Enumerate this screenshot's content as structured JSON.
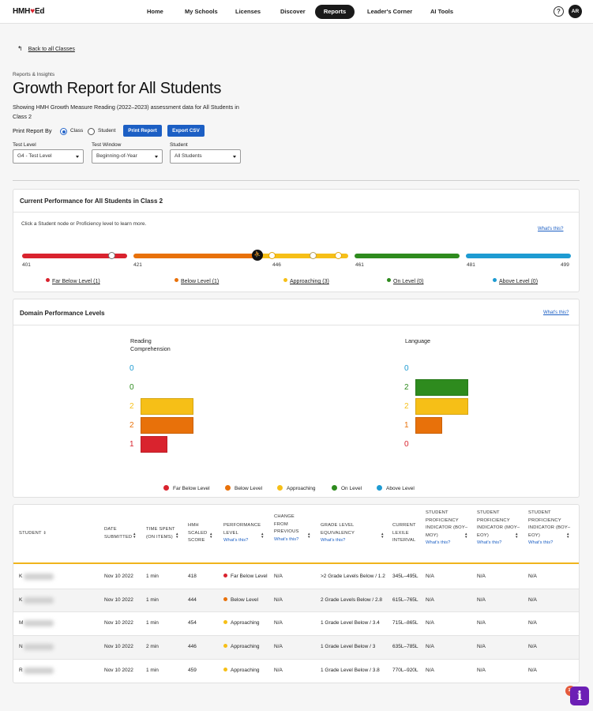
{
  "nav": {
    "logo_pre": "HMH",
    "logo_post": "Ed",
    "items": [
      "Home",
      "My Schools",
      "Licenses",
      "Discover",
      "Reports",
      "Leader's Corner",
      "AI Tools"
    ],
    "active": "Reports",
    "help": "?",
    "avatar": "AR"
  },
  "back_link": "Back to all Classes",
  "kicker": "Reports & Insights",
  "title": "Growth Report for All Students",
  "description": "Showing HMH Growth Measure Reading (2022–2023) assessment data for All Students in Class 2",
  "print_by": {
    "label": "Print Report By",
    "options": [
      "Class",
      "Student"
    ],
    "selected": "Class",
    "print_button": "Print Report",
    "export_button": "Export CSV"
  },
  "filters": {
    "test_level": {
      "label": "Test Level",
      "value": "G4 - Test Level"
    },
    "test_window": {
      "label": "Test Window",
      "value": "Beginning-of-Year"
    },
    "student": {
      "label": "Student",
      "value": "All Students"
    }
  },
  "performance": {
    "title": "Current Performance for All Students in Class 2",
    "hint": "Click a Student node or Proficiency level to learn more.",
    "whats_this": "What's this?",
    "ticks": [
      "401",
      "421",
      "446",
      "461",
      "481",
      "499"
    ],
    "levels": [
      {
        "label": "Far Below Level (1)",
        "color": "#d9232e"
      },
      {
        "label": "Below Level (1)",
        "color": "#e8710a"
      },
      {
        "label": "Approaching (3)",
        "color": "#f6bf17"
      },
      {
        "label": "On Level (0)",
        "color": "#2e8b1e"
      },
      {
        "label": "Above Level (0)",
        "color": "#1e9bd2"
      }
    ]
  },
  "domain": {
    "title": "Domain Performance Levels",
    "whats_this": "What's this?",
    "reading": {
      "title": "Reading Comprehension",
      "counts": {
        "above": 0,
        "on": 0,
        "approaching": 2,
        "below": 2,
        "far_below": 1
      }
    },
    "language": {
      "title": "Language",
      "counts": {
        "above": 0,
        "on": 2,
        "approaching": 2,
        "below": 1,
        "far_below": 0
      }
    },
    "legend": [
      "Far Below Level",
      "Below Level",
      "Approaching",
      "On Level",
      "Above Level"
    ]
  },
  "table": {
    "headers": {
      "student": "Student",
      "date": "Date Submitted",
      "time": "Time Spent (on items)",
      "score": "HMH Scaled Score",
      "perf": "Performance Level",
      "change": "Change from Previous",
      "grade": "Grade Level Equivalency",
      "lexile": "Current Lexile Interval",
      "spi1": "Student Proficiency Indicator (BOY–MOY)",
      "spi2": "Student Proficiency Indicator (MOY–EOY)",
      "spi3": "Student Proficiency Indicator (BOY–EOY)",
      "whats_this": "What's this?"
    },
    "rows": [
      {
        "initial": "K",
        "date": "Nov 10 2022",
        "time": "1 min",
        "score": "418",
        "perf": "Far Below Level",
        "perf_color": "#d9232e",
        "change": "N/A",
        "grade": ">2 Grade Levels Below / 1.2",
        "lexile": "345L–495L",
        "spi1": "N/A",
        "spi2": "N/A",
        "spi3": "N/A"
      },
      {
        "initial": "K",
        "date": "Nov 10 2022",
        "time": "1 min",
        "score": "444",
        "perf": "Below Level",
        "perf_color": "#e8710a",
        "change": "N/A",
        "grade": "2 Grade Levels Below / 2.8",
        "lexile": "615L–765L",
        "spi1": "N/A",
        "spi2": "N/A",
        "spi3": "N/A"
      },
      {
        "initial": "M",
        "date": "Nov 10 2022",
        "time": "1 min",
        "score": "454",
        "perf": "Approaching",
        "perf_color": "#f6bf17",
        "change": "N/A",
        "grade": "1 Grade Level Below / 3.4",
        "lexile": "715L–865L",
        "spi1": "N/A",
        "spi2": "N/A",
        "spi3": "N/A"
      },
      {
        "initial": "N",
        "date": "Nov 10 2022",
        "time": "2 min",
        "score": "446",
        "perf": "Approaching",
        "perf_color": "#f6bf17",
        "change": "N/A",
        "grade": "1 Grade Level Below / 3",
        "lexile": "635L–785L",
        "spi1": "N/A",
        "spi2": "N/A",
        "spi3": "N/A"
      },
      {
        "initial": "R",
        "date": "Nov 10 2022",
        "time": "1 min",
        "score": "459",
        "perf": "Approaching",
        "perf_color": "#f6bf17",
        "change": "N/A",
        "grade": "1 Grade Level Below / 3.8",
        "lexile": "770L–920L",
        "spi1": "N/A",
        "spi2": "N/A",
        "spi3": "N/A"
      }
    ]
  },
  "fab": {
    "icon": "i",
    "badge": "16"
  }
}
